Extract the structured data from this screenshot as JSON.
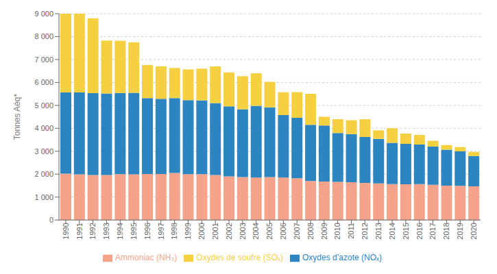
{
  "chart_data": {
    "type": "bar",
    "stacked": true,
    "grid": true,
    "legend": "bottom",
    "ylabel": "Tonnes Aéq*",
    "categories": [
      "1990",
      "1991",
      "1992",
      "1993",
      "1994",
      "1995",
      "1996",
      "1997",
      "1998",
      "1999",
      "2000",
      "2001",
      "2002",
      "2003",
      "2004",
      "2005",
      "2006",
      "2007",
      "2008",
      "2009",
      "2010",
      "2011",
      "2012",
      "2013",
      "2014",
      "2015",
      "2016",
      "2017",
      "2018",
      "2019",
      "2020"
    ],
    "series": [
      {
        "name": "Ammoniac (NH₃)",
        "color": "#F5A48B",
        "values": [
          2020,
          1990,
          1960,
          1960,
          2000,
          1990,
          2010,
          2010,
          2050,
          2000,
          2000,
          1960,
          1900,
          1870,
          1850,
          1870,
          1850,
          1820,
          1700,
          1680,
          1660,
          1650,
          1620,
          1600,
          1570,
          1560,
          1570,
          1540,
          1500,
          1490,
          1470
        ]
      },
      {
        "name": "Oxydes d’azote (NOₓ)",
        "color": "#2C85C1",
        "values": [
          3540,
          3570,
          3570,
          3560,
          3540,
          3560,
          3310,
          3280,
          3270,
          3230,
          3220,
          3140,
          3060,
          2960,
          3130,
          3040,
          2730,
          2640,
          2450,
          2440,
          2130,
          2100,
          2000,
          1940,
          1800,
          1760,
          1720,
          1660,
          1570,
          1500,
          1320
        ]
      },
      {
        "name": "Oxydes de soufre (SOₓ)",
        "color": "#F5D040",
        "values": [
          3440,
          3440,
          3270,
          2310,
          2280,
          2200,
          1440,
          1420,
          1310,
          1340,
          1380,
          1600,
          1480,
          1440,
          1420,
          1120,
          990,
          1120,
          1350,
          380,
          610,
          600,
          780,
          370,
          630,
          450,
          420,
          260,
          200,
          190,
          180
        ]
      }
    ],
    "ylim": [
      0,
      9000
    ],
    "yticks": [
      0,
      {
        "value": 1000,
        "label": "1 000"
      },
      {
        "value": 2000,
        "label": "2 000"
      },
      {
        "value": 3000,
        "label": "3 000"
      },
      {
        "value": 4000,
        "label": "4 000"
      },
      {
        "value": 5000,
        "label": "5 000"
      },
      {
        "value": 6000,
        "label": "6 000"
      },
      {
        "value": 7000,
        "label": "7 000"
      },
      {
        "value": 8000,
        "label": "8 000"
      },
      {
        "value": 9000,
        "label": "9 000"
      }
    ]
  }
}
